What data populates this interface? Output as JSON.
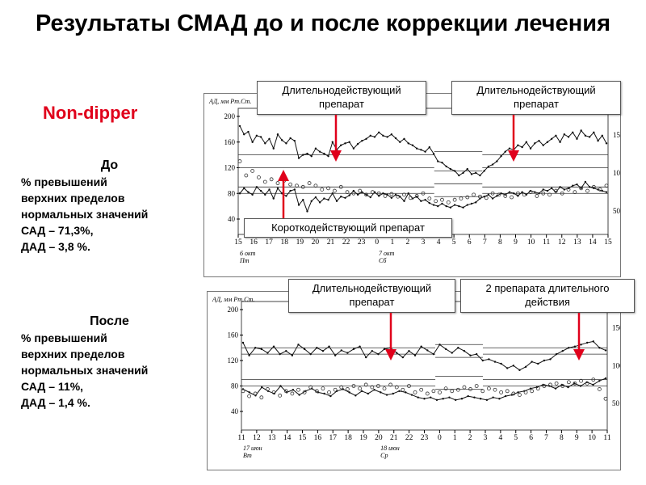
{
  "title": "Результаты СМАД до и после коррекции лечения",
  "label_type": "Non-dipper",
  "before": {
    "heading": "До",
    "text": "% превышений\nверхних пределов\nнормальных значений\nСАД – 71,3%,\nДАД – 3,8 %."
  },
  "after": {
    "heading": "После",
    "text": "% превышений\nверхних пределов\nнормальных значений\nСАД – 11%,\nДАД – 1,4 %."
  },
  "colors": {
    "accent": "#e0001b",
    "line": "#111111"
  },
  "callouts": {
    "top_left": "Длительнодействующий препарат",
    "top_right": "Длительнодействующий препарат",
    "top_short": "Короткодействующий препарат",
    "bottom_left": "Длительнодействующий препарат",
    "bottom_right": "2 препарата длительного действия"
  },
  "chart_data": [
    {
      "type": "line",
      "ylabel": "АД, мм Рт.Ст.",
      "ylim": [
        40,
        200
      ],
      "yticks": [
        40,
        80,
        120,
        160,
        200
      ],
      "right_ticks": [
        "50",
        "100",
        "150"
      ],
      "x_ticks": [
        "15",
        "16",
        "17",
        "18",
        "19",
        "20",
        "21",
        "22",
        "23",
        "0",
        "1",
        "2",
        "3",
        "4",
        "5",
        "6",
        "7",
        "8",
        "9",
        "10",
        "11",
        "12",
        "13",
        "14",
        "15"
      ],
      "day_labels": [
        "6 окт\nПт",
        "7 окт\nСб"
      ],
      "thresholds": [
        140,
        120,
        90,
        80
      ],
      "series": [
        {
          "values": [
            185,
            172,
            176,
            160,
            170,
            168,
            158,
            165,
            150,
            172,
            163,
            158,
            166,
            162,
            135,
            140,
            142,
            138,
            150,
            145,
            142,
            138,
            160,
            148,
            155,
            158,
            160,
            150,
            157,
            162,
            165,
            170,
            168,
            175,
            170,
            168,
            172,
            166,
            160,
            165,
            158,
            155,
            150,
            148,
            145,
            152,
            142,
            130,
            128,
            122,
            118,
            115,
            108,
            112,
            118,
            110,
            112,
            108,
            115,
            122,
            125,
            130,
            138,
            145,
            150,
            148,
            155,
            152,
            160,
            150,
            158,
            162,
            155,
            160,
            165,
            170,
            160,
            172,
            168,
            175,
            165,
            178,
            170,
            168,
            175,
            162,
            170,
            158
          ]
        },
        {
          "values": [
            80,
            88,
            82,
            78,
            90,
            84,
            78,
            86,
            72,
            88,
            80,
            76,
            84,
            86,
            62,
            70,
            52,
            68,
            74,
            66,
            72,
            70,
            80,
            68,
            75,
            73,
            77,
            84,
            78,
            82,
            78,
            74,
            82,
            76,
            80,
            78,
            73,
            78,
            75,
            68,
            80,
            72,
            75,
            68,
            70,
            65,
            62,
            60,
            64,
            60,
            58,
            62,
            60,
            58,
            62,
            64,
            66,
            72,
            75,
            78,
            72,
            76,
            80,
            78,
            82,
            80,
            76,
            82,
            78,
            84,
            82,
            80,
            86,
            84,
            88,
            82,
            90,
            86,
            88,
            92,
            94,
            88,
            98,
            90,
            88,
            86,
            84,
            82
          ]
        },
        {
          "values": [
            130,
            108,
            115,
            105,
            98,
            102,
            96,
            100,
            94,
            92,
            90,
            96,
            92,
            86,
            88,
            84,
            90,
            82,
            80,
            84,
            78,
            82,
            80,
            76,
            79,
            75,
            78,
            73,
            76,
            80,
            72,
            68,
            70,
            66,
            70,
            72,
            74,
            78,
            75,
            73,
            80,
            78,
            76,
            74,
            80,
            78,
            82,
            76,
            80,
            78,
            84,
            80,
            86,
            82,
            88,
            84,
            90,
            86,
            92
          ]
        }
      ]
    },
    {
      "type": "line",
      "ylabel": "АД, мм Рт.Ст.",
      "ylim": [
        40,
        200
      ],
      "yticks": [
        40,
        80,
        120,
        160,
        200
      ],
      "right_ticks": [
        "50",
        "100",
        "150"
      ],
      "x_ticks": [
        "11",
        "12",
        "13",
        "14",
        "15",
        "16",
        "17",
        "18",
        "19",
        "20",
        "21",
        "22",
        "23",
        "0",
        "1",
        "2",
        "3",
        "4",
        "5",
        "6",
        "7",
        "8",
        "9",
        "10",
        "11"
      ],
      "day_labels": [
        "17 июн\nВт",
        "18 июн\nСр"
      ],
      "thresholds": [
        140,
        130,
        90,
        80
      ],
      "series": [
        {
          "values": [
            148,
            128,
            140,
            138,
            132,
            142,
            130,
            135,
            128,
            145,
            138,
            130,
            140,
            135,
            142,
            128,
            136,
            132,
            138,
            142,
            125,
            135,
            130,
            138,
            140,
            132,
            125,
            135,
            128,
            142,
            136,
            130,
            145,
            138,
            132,
            140,
            135,
            128,
            130,
            120,
            122,
            118,
            115,
            108,
            112,
            105,
            110,
            118,
            115,
            120,
            122,
            130,
            135,
            140,
            142,
            145,
            148,
            150,
            140,
            136
          ]
        },
        {
          "values": [
            75,
            70,
            65,
            78,
            72,
            68,
            80,
            70,
            74,
            66,
            72,
            76,
            70,
            68,
            64,
            72,
            75,
            70,
            65,
            72,
            68,
            74,
            70,
            66,
            68,
            72,
            70,
            66,
            62,
            60,
            62,
            58,
            60,
            62,
            58,
            60,
            64,
            62,
            60,
            58,
            62,
            60,
            64,
            66,
            70,
            72,
            76,
            78,
            82,
            80,
            76,
            82,
            78,
            84,
            80,
            86,
            82,
            88,
            92
          ]
        },
        {
          "values": [
            72,
            64,
            68,
            62,
            75,
            70,
            65,
            72,
            68,
            74,
            70,
            78,
            72,
            76,
            70,
            74,
            78,
            75,
            80,
            76,
            82,
            78,
            80,
            76,
            82,
            78,
            74,
            80,
            70,
            74,
            68,
            72,
            70,
            76,
            72,
            74,
            78,
            75,
            80,
            72,
            76,
            74,
            70,
            72,
            68,
            66,
            70,
            72,
            76,
            80,
            82,
            84,
            80,
            86,
            84,
            88,
            84,
            90,
            75,
            60
          ]
        }
      ]
    }
  ]
}
